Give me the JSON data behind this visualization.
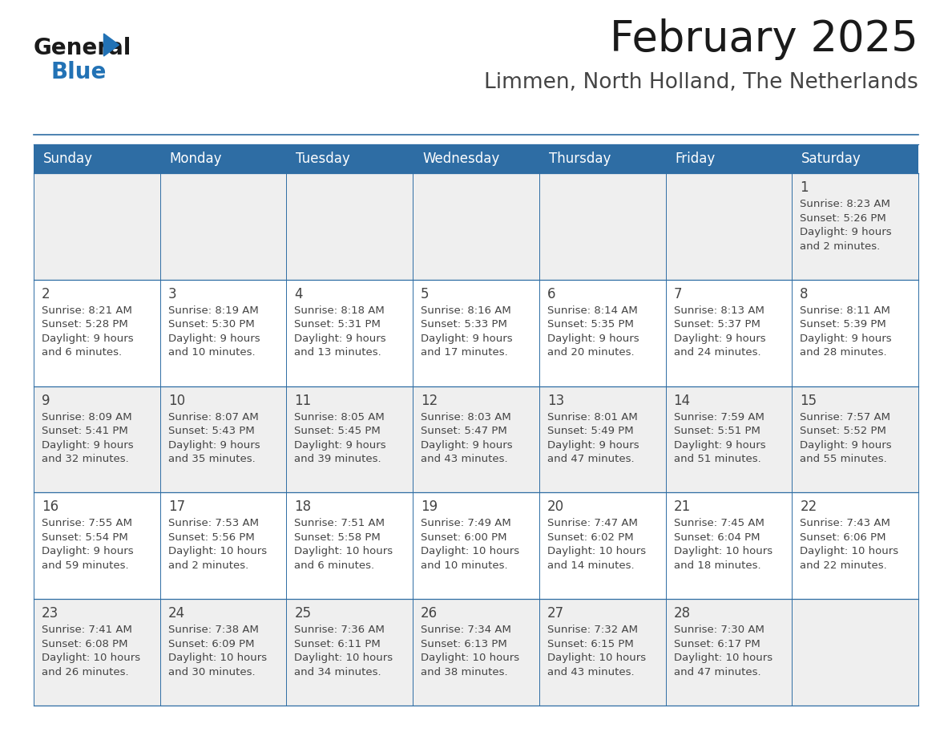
{
  "title": "February 2025",
  "subtitle": "Limmen, North Holland, The Netherlands",
  "header_color": "#2E6DA4",
  "header_text_color": "#FFFFFF",
  "day_names": [
    "Sunday",
    "Monday",
    "Tuesday",
    "Wednesday",
    "Thursday",
    "Friday",
    "Saturday"
  ],
  "background_color": "#FFFFFF",
  "cell_bg_gray": "#EFEFEF",
  "cell_bg_white": "#FFFFFF",
  "border_color": "#2E6DA4",
  "text_color": "#444444",
  "day_num_color": "#444444",
  "logo_color1": "#1a1a1a",
  "logo_color2": "#2272B5",
  "triangle_color": "#2272B5",
  "title_color": "#1a1a1a",
  "subtitle_color": "#444444",
  "weeks": [
    [
      {
        "day": null,
        "info": null
      },
      {
        "day": null,
        "info": null
      },
      {
        "day": null,
        "info": null
      },
      {
        "day": null,
        "info": null
      },
      {
        "day": null,
        "info": null
      },
      {
        "day": null,
        "info": null
      },
      {
        "day": 1,
        "info": "Sunrise: 8:23 AM\nSunset: 5:26 PM\nDaylight: 9 hours\nand 2 minutes."
      }
    ],
    [
      {
        "day": 2,
        "info": "Sunrise: 8:21 AM\nSunset: 5:28 PM\nDaylight: 9 hours\nand 6 minutes."
      },
      {
        "day": 3,
        "info": "Sunrise: 8:19 AM\nSunset: 5:30 PM\nDaylight: 9 hours\nand 10 minutes."
      },
      {
        "day": 4,
        "info": "Sunrise: 8:18 AM\nSunset: 5:31 PM\nDaylight: 9 hours\nand 13 minutes."
      },
      {
        "day": 5,
        "info": "Sunrise: 8:16 AM\nSunset: 5:33 PM\nDaylight: 9 hours\nand 17 minutes."
      },
      {
        "day": 6,
        "info": "Sunrise: 8:14 AM\nSunset: 5:35 PM\nDaylight: 9 hours\nand 20 minutes."
      },
      {
        "day": 7,
        "info": "Sunrise: 8:13 AM\nSunset: 5:37 PM\nDaylight: 9 hours\nand 24 minutes."
      },
      {
        "day": 8,
        "info": "Sunrise: 8:11 AM\nSunset: 5:39 PM\nDaylight: 9 hours\nand 28 minutes."
      }
    ],
    [
      {
        "day": 9,
        "info": "Sunrise: 8:09 AM\nSunset: 5:41 PM\nDaylight: 9 hours\nand 32 minutes."
      },
      {
        "day": 10,
        "info": "Sunrise: 8:07 AM\nSunset: 5:43 PM\nDaylight: 9 hours\nand 35 minutes."
      },
      {
        "day": 11,
        "info": "Sunrise: 8:05 AM\nSunset: 5:45 PM\nDaylight: 9 hours\nand 39 minutes."
      },
      {
        "day": 12,
        "info": "Sunrise: 8:03 AM\nSunset: 5:47 PM\nDaylight: 9 hours\nand 43 minutes."
      },
      {
        "day": 13,
        "info": "Sunrise: 8:01 AM\nSunset: 5:49 PM\nDaylight: 9 hours\nand 47 minutes."
      },
      {
        "day": 14,
        "info": "Sunrise: 7:59 AM\nSunset: 5:51 PM\nDaylight: 9 hours\nand 51 minutes."
      },
      {
        "day": 15,
        "info": "Sunrise: 7:57 AM\nSunset: 5:52 PM\nDaylight: 9 hours\nand 55 minutes."
      }
    ],
    [
      {
        "day": 16,
        "info": "Sunrise: 7:55 AM\nSunset: 5:54 PM\nDaylight: 9 hours\nand 59 minutes."
      },
      {
        "day": 17,
        "info": "Sunrise: 7:53 AM\nSunset: 5:56 PM\nDaylight: 10 hours\nand 2 minutes."
      },
      {
        "day": 18,
        "info": "Sunrise: 7:51 AM\nSunset: 5:58 PM\nDaylight: 10 hours\nand 6 minutes."
      },
      {
        "day": 19,
        "info": "Sunrise: 7:49 AM\nSunset: 6:00 PM\nDaylight: 10 hours\nand 10 minutes."
      },
      {
        "day": 20,
        "info": "Sunrise: 7:47 AM\nSunset: 6:02 PM\nDaylight: 10 hours\nand 14 minutes."
      },
      {
        "day": 21,
        "info": "Sunrise: 7:45 AM\nSunset: 6:04 PM\nDaylight: 10 hours\nand 18 minutes."
      },
      {
        "day": 22,
        "info": "Sunrise: 7:43 AM\nSunset: 6:06 PM\nDaylight: 10 hours\nand 22 minutes."
      }
    ],
    [
      {
        "day": 23,
        "info": "Sunrise: 7:41 AM\nSunset: 6:08 PM\nDaylight: 10 hours\nand 26 minutes."
      },
      {
        "day": 24,
        "info": "Sunrise: 7:38 AM\nSunset: 6:09 PM\nDaylight: 10 hours\nand 30 minutes."
      },
      {
        "day": 25,
        "info": "Sunrise: 7:36 AM\nSunset: 6:11 PM\nDaylight: 10 hours\nand 34 minutes."
      },
      {
        "day": 26,
        "info": "Sunrise: 7:34 AM\nSunset: 6:13 PM\nDaylight: 10 hours\nand 38 minutes."
      },
      {
        "day": 27,
        "info": "Sunrise: 7:32 AM\nSunset: 6:15 PM\nDaylight: 10 hours\nand 43 minutes."
      },
      {
        "day": 28,
        "info": "Sunrise: 7:30 AM\nSunset: 6:17 PM\nDaylight: 10 hours\nand 47 minutes."
      },
      {
        "day": null,
        "info": null
      }
    ]
  ],
  "title_fontsize": 38,
  "subtitle_fontsize": 19,
  "dayname_fontsize": 12,
  "daynum_fontsize": 12,
  "info_fontsize": 9.5
}
